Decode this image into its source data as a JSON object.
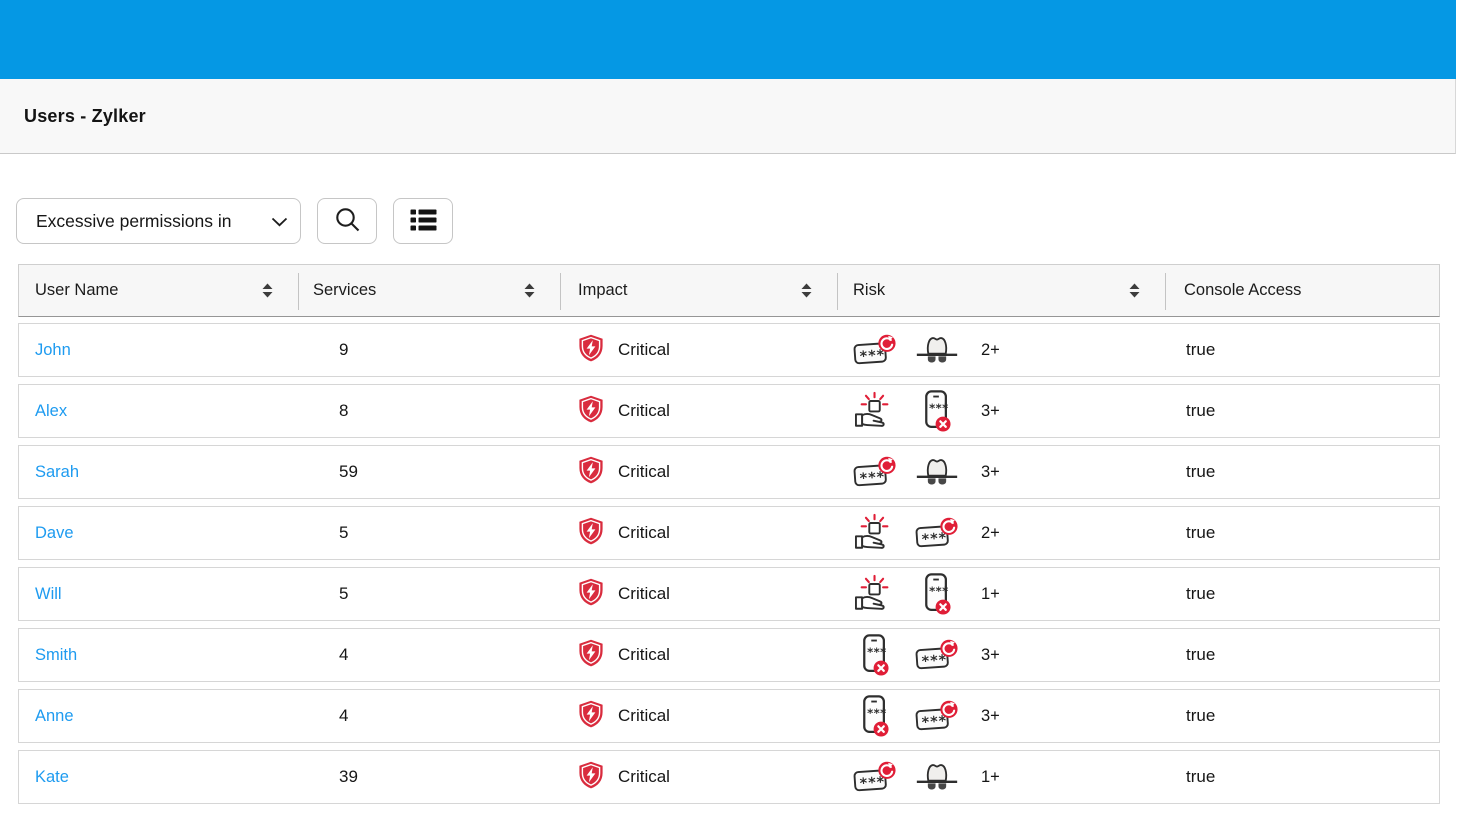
{
  "header": {
    "title": "Users - Zylker"
  },
  "toolbar": {
    "filter_value": "Excessive permissions in",
    "search_icon": "search",
    "list_icon": "list-view"
  },
  "table": {
    "columns": [
      {
        "label": "User Name",
        "sortable": true
      },
      {
        "label": "Services",
        "sortable": true
      },
      {
        "label": "Impact",
        "sortable": true
      },
      {
        "label": "Risk",
        "sortable": true
      },
      {
        "label": "Console Access",
        "sortable": false
      }
    ],
    "rows": [
      {
        "user_name": "John",
        "services": "9",
        "impact": "Critical",
        "risk_icons": [
          "password-rotation",
          "spy-hat"
        ],
        "risk_count": "2+",
        "console_access": "true"
      },
      {
        "user_name": "Alex",
        "services": "8",
        "impact": "Critical",
        "risk_icons": [
          "permission-grant",
          "mfa-disabled"
        ],
        "risk_count": "3+",
        "console_access": "true"
      },
      {
        "user_name": "Sarah",
        "services": "59",
        "impact": "Critical",
        "risk_icons": [
          "password-rotation",
          "spy-hat"
        ],
        "risk_count": "3+",
        "console_access": "true"
      },
      {
        "user_name": "Dave",
        "services": "5",
        "impact": "Critical",
        "risk_icons": [
          "permission-grant",
          "password-rotation"
        ],
        "risk_count": "2+",
        "console_access": "true"
      },
      {
        "user_name": "Will",
        "services": "5",
        "impact": "Critical",
        "risk_icons": [
          "permission-grant",
          "mfa-disabled"
        ],
        "risk_count": "1+",
        "console_access": "true"
      },
      {
        "user_name": "Smith",
        "services": "4",
        "impact": "Critical",
        "risk_icons": [
          "mfa-disabled",
          "password-rotation"
        ],
        "risk_count": "3+",
        "console_access": "true"
      },
      {
        "user_name": "Anne",
        "services": "4",
        "impact": "Critical",
        "risk_icons": [
          "mfa-disabled",
          "password-rotation"
        ],
        "risk_count": "3+",
        "console_access": "true"
      },
      {
        "user_name": "Kate",
        "services": "39",
        "impact": "Critical",
        "risk_icons": [
          "password-rotation",
          "spy-hat"
        ],
        "risk_count": "1+",
        "console_access": "true"
      }
    ]
  },
  "colors": {
    "topbar_blue": "#0598e4",
    "link_blue": "#1e9bf0",
    "badge_red": "#e01e37",
    "shield_red": "#d92c3e"
  }
}
